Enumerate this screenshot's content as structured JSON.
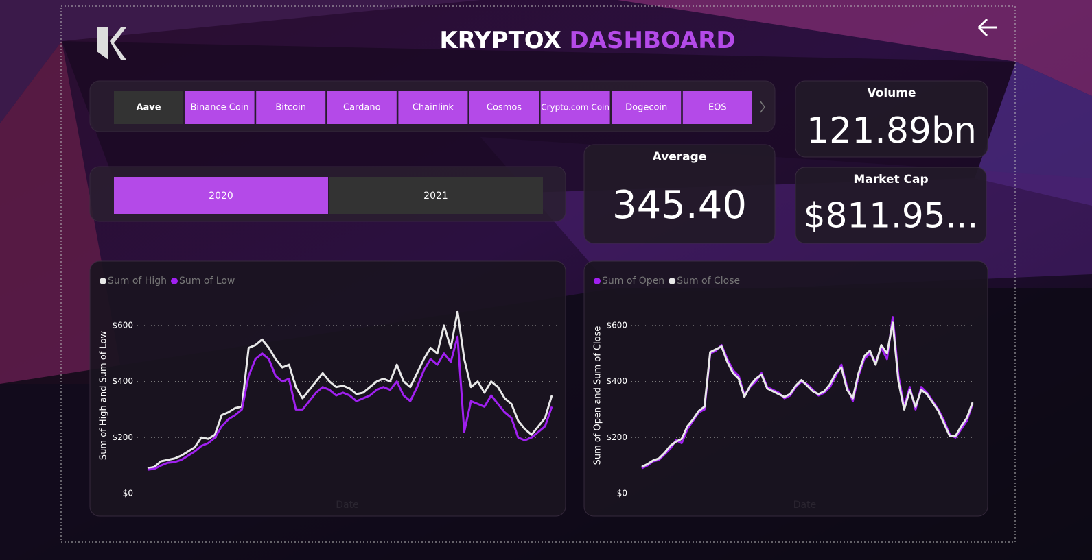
{
  "header": {
    "title_part1": "KRYPTOX",
    "title_part2": "DASHBOARD"
  },
  "coin_slicer": {
    "items": [
      "Aave",
      "Binance Coin",
      "Bitcoin",
      "Cardano",
      "Chainlink",
      "Cosmos",
      "Crypto.com Coin",
      "Dogecoin",
      "EOS"
    ],
    "selected": "Aave"
  },
  "year_slicer": {
    "items": [
      "2020",
      "2021"
    ],
    "selected": "2020"
  },
  "cards": [
    {
      "label": "Volume",
      "value": "121.89bn"
    },
    {
      "label": "Average",
      "value": "345.40"
    },
    {
      "label": "Market Cap",
      "value": "$811.95..."
    }
  ],
  "chart_data": [
    {
      "type": "line",
      "y_label": "Sum of High and Sum of Low",
      "x_label": "Date",
      "ylim": [
        0,
        700
      ],
      "yticks": [
        {
          "value": 0,
          "label": "$0"
        },
        {
          "value": 200,
          "label": "$200"
        },
        {
          "value": 400,
          "label": "$400"
        },
        {
          "value": 600,
          "label": "$600"
        }
      ],
      "grid": true,
      "series": [
        {
          "name": "Sum of High",
          "color": "#e8e8e8",
          "values": [
            90,
            95,
            115,
            120,
            125,
            135,
            150,
            165,
            200,
            195,
            210,
            280,
            290,
            305,
            310,
            520,
            530,
            550,
            520,
            480,
            450,
            460,
            380,
            340,
            370,
            400,
            430,
            400,
            380,
            385,
            375,
            355,
            360,
            380,
            400,
            410,
            400,
            460,
            400,
            380,
            430,
            480,
            520,
            500,
            600,
            520,
            650,
            480,
            380,
            400,
            360,
            400,
            380,
            340,
            320,
            260,
            230,
            210,
            240,
            270,
            350
          ]
        },
        {
          "name": "Sum of Low",
          "color": "#a020f0",
          "values": [
            85,
            88,
            100,
            110,
            112,
            120,
            135,
            150,
            170,
            180,
            200,
            240,
            265,
            280,
            300,
            420,
            480,
            500,
            480,
            420,
            400,
            410,
            300,
            300,
            330,
            360,
            380,
            370,
            350,
            360,
            350,
            330,
            340,
            350,
            370,
            380,
            370,
            400,
            350,
            330,
            380,
            440,
            480,
            460,
            500,
            470,
            560,
            220,
            330,
            320,
            310,
            350,
            320,
            290,
            270,
            200,
            190,
            200,
            220,
            240,
            310
          ]
        }
      ]
    },
    {
      "type": "line",
      "y_label": "Sum of Open and Sum of Close",
      "x_label": "Date",
      "ylim": [
        0,
        700
      ],
      "yticks": [
        {
          "value": 0,
          "label": "$0"
        },
        {
          "value": 200,
          "label": "$200"
        },
        {
          "value": 400,
          "label": "$400"
        },
        {
          "value": 600,
          "label": "$600"
        }
      ],
      "grid": true,
      "series": [
        {
          "name": "Sum of Open",
          "color": "#a020f0",
          "values": [
            90,
            100,
            115,
            120,
            140,
            160,
            190,
            180,
            230,
            260,
            290,
            300,
            500,
            510,
            530,
            480,
            440,
            420,
            350,
            380,
            400,
            430,
            380,
            370,
            360,
            340,
            350,
            380,
            400,
            390,
            370,
            350,
            360,
            380,
            420,
            460,
            380,
            330,
            420,
            480,
            500,
            470,
            520,
            480,
            630,
            420,
            310,
            380,
            300,
            380,
            360,
            330,
            300,
            260,
            210,
            200,
            230,
            260,
            320
          ]
        },
        {
          "name": "Sum of Close",
          "color": "#e8e8e8",
          "values": [
            95,
            105,
            118,
            125,
            145,
            170,
            185,
            195,
            240,
            265,
            295,
            310,
            505,
            515,
            525,
            470,
            430,
            410,
            345,
            385,
            410,
            425,
            375,
            365,
            355,
            345,
            355,
            385,
            405,
            385,
            365,
            355,
            365,
            390,
            430,
            450,
            370,
            340,
            430,
            490,
            510,
            460,
            530,
            500,
            610,
            400,
            300,
            370,
            310,
            370,
            355,
            325,
            295,
            250,
            205,
            205,
            240,
            270,
            325
          ]
        }
      ]
    }
  ]
}
